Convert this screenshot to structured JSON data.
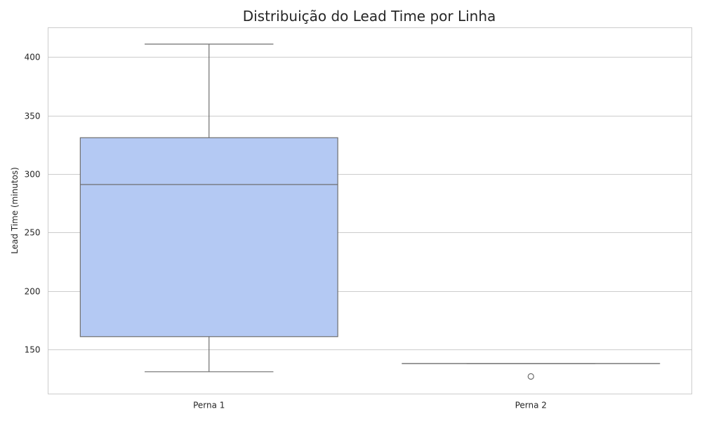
{
  "chart_data": {
    "type": "box",
    "title": "Distribuição do Lead Time por Linha",
    "xlabel": "",
    "ylabel": "Lead Time (minutos)",
    "categories": [
      "Perna 1",
      "Perna 2"
    ],
    "ylim": [
      112,
      425
    ],
    "yticks": [
      150,
      200,
      250,
      300,
      350,
      400
    ],
    "grid": true,
    "boxes": [
      {
        "category": "Perna 1",
        "whisker_low": 131,
        "q1": 161,
        "median": 291,
        "q3": 331,
        "whisker_high": 411,
        "outliers": []
      },
      {
        "category": "Perna 2",
        "whisker_low": 138,
        "q1": 138,
        "median": 138,
        "q3": 138,
        "whisker_high": 138,
        "outliers": [
          127
        ]
      }
    ],
    "colors": {
      "box_fill": "#b4c9f3",
      "box_edge": "#6e6e6e",
      "grid": "#cccccc",
      "frame": "#cccccc",
      "text": "#262626"
    }
  }
}
